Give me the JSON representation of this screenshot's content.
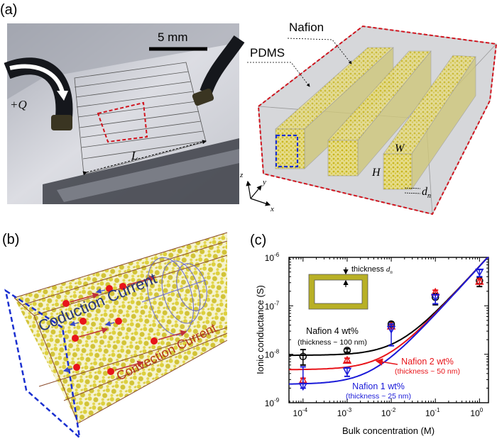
{
  "panel_a": {
    "label": "(a)",
    "scale_bar": "5 mm",
    "flow_label": "+Q",
    "length_label": "L",
    "nafion_label": "Nafion",
    "pdms_label": "PDMS",
    "width_label": "W",
    "height_label": "H",
    "thickness_label": "d",
    "thickness_sub": "n",
    "axis_z": "z",
    "axis_y": "y",
    "axis_x": "x",
    "colors": {
      "highlight_red": "#d0141e",
      "highlight_blue": "#1a2fd0",
      "nafion": "#c8b820"
    }
  },
  "panel_b": {
    "label": "(b)",
    "conduction_label": "Coduction Current",
    "convection_label": "Convection Current",
    "colors": {
      "conduction": "#27357a",
      "convection": "#b5341a",
      "ions": "#e8141a"
    }
  },
  "panel_c": {
    "label": "(c)",
    "inset_label": "thickness ",
    "inset_symbol": "d",
    "inset_sub": "n",
    "annotations": [
      {
        "name": "Nafion 4 wt%",
        "detail": "(thickness ~ 100 nm)",
        "color": "#000000"
      },
      {
        "name": "Nafion 2 wt%",
        "detail": "(thickness ~ 50 nm)",
        "color": "#e8141a"
      },
      {
        "name": "Nafion 1 wt%",
        "detail": "(thickness ~ 25 nm)",
        "color": "#1a1ad8"
      }
    ]
  },
  "chart_data": {
    "type": "scatter",
    "title": "",
    "xlabel": "Bulk concentration (M)",
    "ylabel": "Ionic conductance (S)",
    "xscale": "log",
    "yscale": "log",
    "xlim": [
      4.8e-05,
      1.6
    ],
    "ylim": [
      1e-09,
      1e-06
    ],
    "x_ticks": [
      {
        "base": "10",
        "exp": "-4"
      },
      {
        "base": "10",
        "exp": "-3"
      },
      {
        "base": "10",
        "exp": "-2"
      },
      {
        "base": "10",
        "exp": "-1"
      },
      {
        "base": "10",
        "exp": "0"
      }
    ],
    "y_ticks": [
      {
        "base": "10",
        "exp": "-9"
      },
      {
        "base": "10",
        "exp": "-8"
      },
      {
        "base": "10",
        "exp": "-7"
      },
      {
        "base": "10",
        "exp": "-6"
      }
    ],
    "grid": false,
    "x": [
      0.0001,
      0.001,
      0.01,
      0.1,
      1
    ],
    "series": [
      {
        "name": "Nafion 4 wt%",
        "color": "#000000",
        "marker": "circle",
        "values": [
          9e-09,
          1.2e-08,
          4.2e-08,
          1.5e-07,
          3.3e-07
        ],
        "err_low": [
          6e-09,
          1.1e-08,
          3.8e-08,
          1.05e-07,
          2.5e-07
        ],
        "err_high": [
          1.25e-08,
          1.3e-08,
          4.6e-08,
          1.8e-07,
          3.9e-07
        ],
        "fit_floor": 9.5e-09,
        "fit_slope": 6.5e-07
      },
      {
        "name": "Nafion 2 wt%",
        "color": "#e8141a",
        "marker": "triangle-up",
        "values": [
          2.9e-09,
          7.5e-09,
          3.8e-08,
          1.9e-07,
          3.2e-07
        ],
        "err_low": [
          2.6e-09,
          6.8e-09,
          3.4e-08,
          1.7e-07,
          2.8e-07
        ],
        "err_high": [
          3.2e-09,
          8.3e-09,
          4.2e-08,
          2.1e-07,
          3.6e-07
        ],
        "fit_floor": 4.8e-09,
        "fit_slope": 6.5e-07
      },
      {
        "name": "Nafion 1 wt%",
        "color": "#1a1ad8",
        "marker": "triangle-down",
        "values": [
          2.2e-09,
          4.5e-09,
          3.3e-08,
          1.5e-07,
          5e-07
        ],
        "err_low": [
          2e-09,
          3.5e-09,
          1.5e-08,
          1.1e-07,
          4e-07
        ],
        "err_high": [
          5.5e-09,
          5.3e-09,
          4.2e-08,
          1.7e-07,
          5.6e-07
        ],
        "fit_floor": 2.4e-09,
        "fit_slope": 6.5e-07
      }
    ]
  }
}
